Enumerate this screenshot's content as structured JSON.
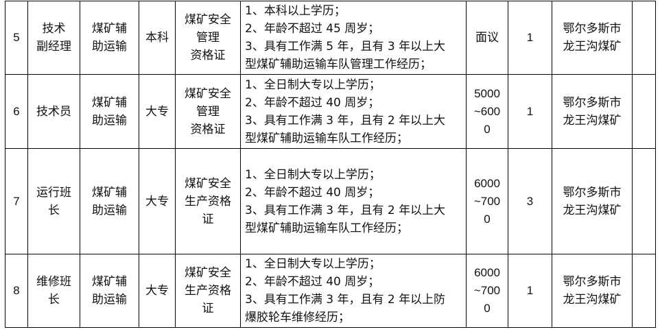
{
  "rows": [
    {
      "no": "5",
      "position": [
        "技术",
        "副经理"
      ],
      "department": [
        "煤矿辅",
        "助运输"
      ],
      "education": "本科",
      "certificate": [
        "煤矿安全",
        "管理",
        "资格证"
      ],
      "requirements": [
        "1、本科以上学历；",
        "2、年龄不超过 45 周岁；",
        "3、具有工作满 5 年，且有 3 年以上大",
        "型煤矿辅助运输车队管理工作经历；"
      ],
      "salary": [
        "面议"
      ],
      "count": "1",
      "location": [
        "鄂尔多斯市",
        "龙王沟煤矿"
      ]
    },
    {
      "no": "6",
      "position": [
        "技术员"
      ],
      "department": [
        "煤矿辅",
        "助运输"
      ],
      "education": "大专",
      "certificate": [
        "煤矿安全",
        "管理",
        "资格证"
      ],
      "requirements": [
        "1、全日制大专以上学历；",
        "2、年龄不超过 40 周岁；",
        "3、具有工作满 3 年，且有 2 年以上大",
        "型煤矿辅助运输车队工作经历；"
      ],
      "salary": [
        "5000",
        "~600",
        "0"
      ],
      "count": "1",
      "location": [
        "鄂尔多斯市",
        "龙王沟煤矿"
      ]
    },
    {
      "no": "7",
      "position": [
        "运行班",
        "长"
      ],
      "department": [
        "煤矿辅",
        "助运输"
      ],
      "education": "大专",
      "certificate": [
        "煤矿安全",
        "生产资格",
        "证"
      ],
      "requirements": [
        "1、全日制大专以上学历；",
        "2、年龄不超过 40 周岁；",
        "3、具有工作满 3 年，且有 2 年以上大",
        "型煤矿辅助运输车队工作经历；"
      ],
      "salary": [
        "6000",
        "~700",
        "0"
      ],
      "count": "3",
      "location": [
        "鄂尔多斯市",
        "龙王沟煤矿"
      ]
    },
    {
      "no": "8",
      "position": [
        "维修班",
        "长"
      ],
      "department": [
        "煤矿辅",
        "助运输"
      ],
      "education": "大专",
      "certificate": [
        "煤矿安全",
        "生产资格",
        "证"
      ],
      "requirements": [
        "1、全日制大专以上学历；",
        "2、年龄不超过 40 周岁；",
        "3、具有工作满 3 年，且有 2 年以上防",
        "爆胶轮车维修经历；"
      ],
      "salary": [
        "6000",
        "~700",
        "0"
      ],
      "count": "1",
      "location": [
        "鄂尔多斯市",
        "龙王沟煤矿"
      ]
    }
  ]
}
